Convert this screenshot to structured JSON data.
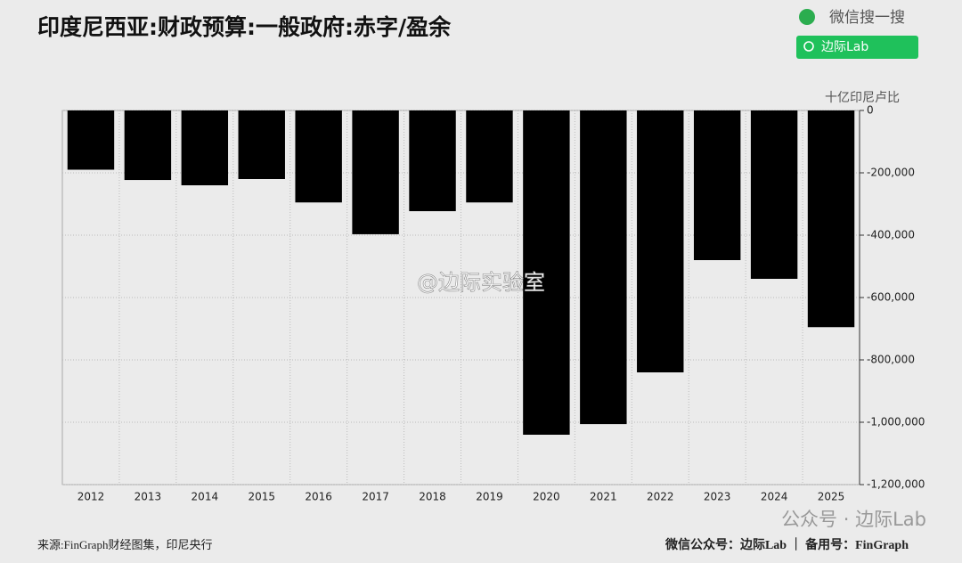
{
  "header": {
    "search_label": "微信搜一搜",
    "button_label": "边际Lab"
  },
  "chart_data": {
    "type": "bar",
    "title": "印度尼西亚:财政预算:一般政府:赤字/盈余",
    "y_axis_label": "十亿印尼卢比",
    "categories": [
      "2012",
      "2013",
      "2014",
      "2015",
      "2016",
      "2017",
      "2018",
      "2019",
      "2020",
      "2021",
      "2022",
      "2023",
      "2024",
      "2025"
    ],
    "values": [
      -190000,
      -223000,
      -240000,
      -220000,
      -295000,
      -397000,
      -323000,
      -295000,
      -1040000,
      -1006000,
      -840000,
      -480000,
      -540000,
      -695000
    ],
    "color": "#000000",
    "ylim": [
      -1200000,
      0
    ],
    "yticks": [
      0,
      {
        "value": -200000,
        "label": "-200,000"
      },
      {
        "value": -400000,
        "label": "-400,000"
      },
      {
        "value": -600000,
        "label": "-600,000"
      },
      {
        "value": -800000,
        "label": "-800,000"
      },
      {
        "value": -1000000,
        "label": "-1,000,000"
      },
      {
        "value": -1200000,
        "label": "-1,200,000"
      }
    ],
    "grid": true,
    "y_axis_side": "right"
  },
  "watermark": "@边际实验室",
  "footer": {
    "source": "来源:FinGraph财经图集，印尼央行",
    "credit": "微信公众号：边际Lab ｜ 备用号：FinGraph",
    "badge": "公众号 · 边际Lab"
  }
}
